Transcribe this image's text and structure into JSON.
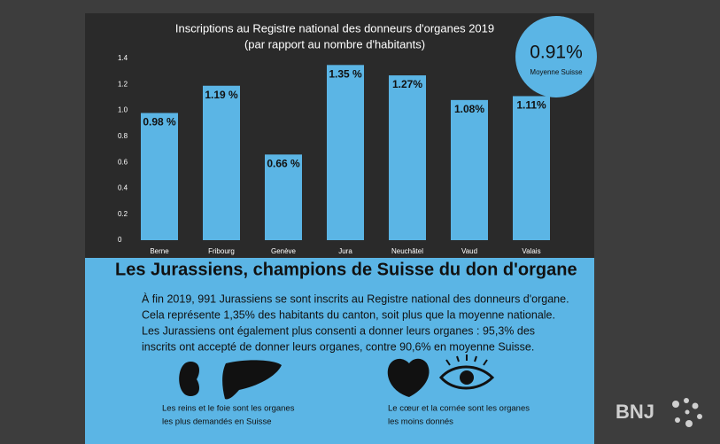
{
  "chart_data": {
    "type": "bar",
    "title": "Inscriptions au Registre national des donneurs d'organes 2019",
    "subtitle": "(par rapport au nombre d'habitants)",
    "categories": [
      "Berne",
      "Fribourg",
      "Genève",
      "Jura",
      "Neuchâtel",
      "Vaud",
      "Valais"
    ],
    "values": [
      0.98,
      1.19,
      0.66,
      1.35,
      1.27,
      1.08,
      1.11
    ],
    "value_labels": [
      "0.98 %",
      "1.19 %",
      "0.66 %",
      "1.35 %",
      "1.27%",
      "1.08%",
      "1.11%"
    ],
    "color": "#5bb5e5",
    "ylim": [
      0,
      1.4
    ],
    "yticks": [
      0,
      0.2,
      0.4,
      0.6,
      0.8,
      {
        "value": 1,
        "label": "1.0"
      },
      1.2,
      1.4
    ],
    "annotations": [
      "0.91%",
      "Moyenne Suisse"
    ]
  },
  "article": {
    "heading": "Les Jurassiens, champions de Suisse du don d'organe",
    "paragraph": [
      "À fin 2019, 991 Jurassiens se sont inscrits au Registre national des donneurs d'organe.",
      "Cela représente 1,35% des habitants du canton, soit plus que la moyenne nationale.",
      "Les Jurassiens ont également plus consenti a donner leurs organes : 95,3% des",
      "inscrits ont accepté de donner leurs organes, contre 90,6% en moyenne Suisse."
    ],
    "captions": [
      [
        "Les reins et le foie sont les organes",
        "les plus demandés en Suisse"
      ],
      [
        "Le cœur et la cornée sont les organes",
        "les moins donnés"
      ]
    ]
  },
  "logo": "BNJ"
}
